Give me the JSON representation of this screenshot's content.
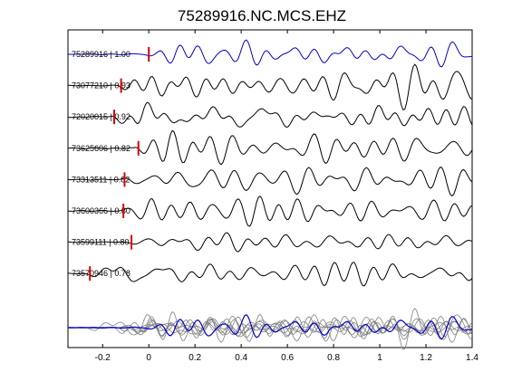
{
  "chart_data": {
    "type": "line",
    "title": "75289916.NC.MCS.EHZ",
    "xlabel": "",
    "ylabel": "",
    "xlim": [
      -0.35,
      1.4
    ],
    "xticks": [
      -0.2,
      0,
      0.2,
      0.4,
      0.6,
      0.8,
      1,
      1.2,
      1.4
    ],
    "xtick_labels": [
      "-0.2",
      "0",
      "0.2",
      "0.4",
      "0.6",
      "0.8",
      "1",
      "1.2",
      "1.4"
    ],
    "grid": false,
    "colors": {
      "reference": "#0000cc",
      "trace": "#000000",
      "stack": "#808080",
      "pick": "#e00000"
    },
    "series": [
      {
        "label": "75289916 | 1.00",
        "pick": 0.0,
        "color": "#0000cc"
      },
      {
        "label": "73077210 | 0.93",
        "pick": -0.12,
        "color": "#000000"
      },
      {
        "label": "72020015 | 0.92",
        "pick": -0.15,
        "color": "#000000"
      },
      {
        "label": "73625606 | 0.82",
        "pick": -0.045,
        "color": "#000000"
      },
      {
        "label": "73313511 | 0.82",
        "pick": -0.105,
        "color": "#000000"
      },
      {
        "label": "73600366 | 0.80",
        "pick": -0.11,
        "color": "#000000"
      },
      {
        "label": "73599111 | 0.80",
        "pick": -0.075,
        "color": "#000000"
      },
      {
        "label": "73570946 | 0.78",
        "pick": -0.255,
        "color": "#000000"
      }
    ]
  }
}
